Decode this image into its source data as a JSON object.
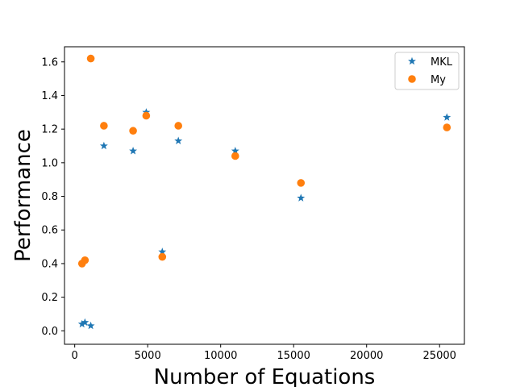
{
  "chart_data": {
    "type": "scatter",
    "title": "",
    "xlabel": "Number of Equations",
    "ylabel": "Performance",
    "xlim": [
      -700,
      26700
    ],
    "ylim": [
      -0.08,
      1.69
    ],
    "xticks": [
      0,
      5000,
      10000,
      15000,
      20000,
      25000
    ],
    "xtick_labels": [
      "0",
      "5000",
      "10000",
      "15000",
      "20000",
      "25000"
    ],
    "yticks": [
      0.0,
      0.2,
      0.4,
      0.6,
      0.8,
      1.0,
      1.2,
      1.4,
      1.6
    ],
    "ytick_labels": [
      "0.0",
      "0.2",
      "0.4",
      "0.6",
      "0.8",
      "1.0",
      "1.2",
      "1.4",
      "1.6"
    ],
    "grid": false,
    "legend_position": "top-right",
    "series": [
      {
        "name": "MKL",
        "marker": "star",
        "color": "#1f77b4",
        "points": [
          {
            "x": 500,
            "y": 0.04
          },
          {
            "x": 700,
            "y": 0.05
          },
          {
            "x": 1100,
            "y": 0.03
          },
          {
            "x": 2000,
            "y": 1.1
          },
          {
            "x": 4000,
            "y": 1.07
          },
          {
            "x": 4900,
            "y": 1.3
          },
          {
            "x": 6000,
            "y": 0.47
          },
          {
            "x": 7100,
            "y": 1.13
          },
          {
            "x": 11000,
            "y": 1.07
          },
          {
            "x": 15500,
            "y": 0.79
          },
          {
            "x": 25500,
            "y": 1.27
          }
        ]
      },
      {
        "name": "My",
        "marker": "circle",
        "color": "#ff7f0e",
        "points": [
          {
            "x": 500,
            "y": 0.4
          },
          {
            "x": 700,
            "y": 0.42
          },
          {
            "x": 1100,
            "y": 1.62
          },
          {
            "x": 2000,
            "y": 1.22
          },
          {
            "x": 4000,
            "y": 1.19
          },
          {
            "x": 4900,
            "y": 1.28
          },
          {
            "x": 6000,
            "y": 0.44
          },
          {
            "x": 7100,
            "y": 1.22
          },
          {
            "x": 11000,
            "y": 1.04
          },
          {
            "x": 15500,
            "y": 0.88
          },
          {
            "x": 25500,
            "y": 1.21
          }
        ]
      }
    ]
  }
}
